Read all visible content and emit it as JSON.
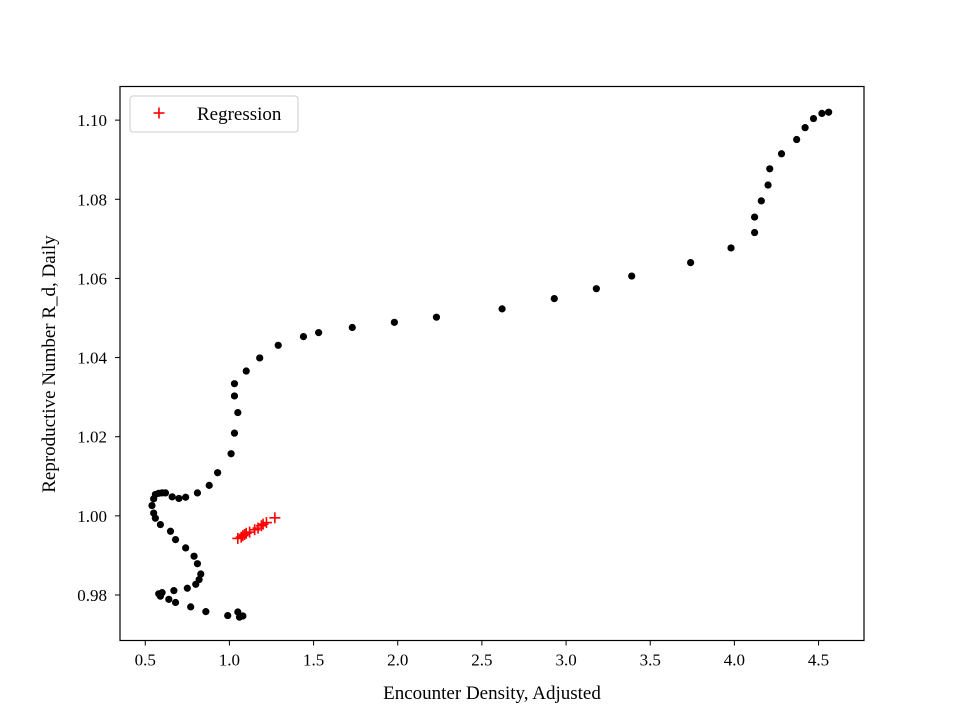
{
  "chart_data": {
    "type": "scatter",
    "title": "",
    "xlabel": "Encounter Density, Adjusted",
    "ylabel": "Reproductive Number R_d, Daily",
    "xlim": [
      0.35,
      4.77
    ],
    "ylim": [
      0.9685,
      1.1085
    ],
    "xticks": [
      0.5,
      1.0,
      1.5,
      2.0,
      2.5,
      3.0,
      3.5,
      4.0,
      4.5
    ],
    "xtick_labels": [
      "0.5",
      "1.0",
      "1.5",
      "2.0",
      "2.5",
      "3.0",
      "3.5",
      "4.0",
      "4.5"
    ],
    "yticks": [
      0.98,
      1.0,
      1.02,
      1.04,
      1.06,
      1.08,
      1.1
    ],
    "ytick_labels": [
      "0.98",
      "1.00",
      "1.02",
      "1.04",
      "1.06",
      "1.08",
      "1.10"
    ],
    "grid": false,
    "legend": {
      "placement": "upper-left",
      "entries": [
        "Regression"
      ]
    },
    "series": [
      {
        "marker": "dot",
        "color": "#000000",
        "points": [
          [
            1.06,
            0.9744
          ],
          [
            1.08,
            0.9747
          ],
          [
            1.05,
            0.9757
          ],
          [
            0.99,
            0.9748
          ],
          [
            0.86,
            0.9758
          ],
          [
            0.77,
            0.977
          ],
          [
            0.68,
            0.9781
          ],
          [
            0.64,
            0.9789
          ],
          [
            0.59,
            0.9797
          ],
          [
            0.58,
            0.9803
          ],
          [
            0.6,
            0.9806
          ],
          [
            0.67,
            0.9811
          ],
          [
            0.75,
            0.9817
          ],
          [
            0.8,
            0.9827
          ],
          [
            0.82,
            0.9839
          ],
          [
            0.83,
            0.9853
          ],
          [
            0.81,
            0.9879
          ],
          [
            0.79,
            0.9898
          ],
          [
            0.74,
            0.9919
          ],
          [
            0.68,
            0.994
          ],
          [
            0.65,
            0.9961
          ],
          [
            0.59,
            0.9978
          ],
          [
            0.56,
            0.9994
          ],
          [
            0.55,
            1.0007
          ],
          [
            0.54,
            1.0026
          ],
          [
            0.55,
            1.0043
          ],
          [
            0.56,
            1.0054
          ],
          [
            0.58,
            1.0057
          ],
          [
            0.6,
            1.0058
          ],
          [
            0.62,
            1.0058
          ],
          [
            0.66,
            1.0048
          ],
          [
            0.7,
            1.0044
          ],
          [
            0.74,
            1.0047
          ],
          [
            0.81,
            1.0058
          ],
          [
            0.88,
            1.0077
          ],
          [
            0.93,
            1.0109
          ],
          [
            1.01,
            1.0157
          ],
          [
            1.03,
            1.0209
          ],
          [
            1.05,
            1.0261
          ],
          [
            1.03,
            1.0303
          ],
          [
            1.03,
            1.0334
          ],
          [
            1.1,
            1.0366
          ],
          [
            1.18,
            1.0399
          ],
          [
            1.29,
            1.0431
          ],
          [
            1.44,
            1.0453
          ],
          [
            1.53,
            1.0463
          ],
          [
            1.73,
            1.0476
          ],
          [
            1.98,
            1.0489
          ],
          [
            2.23,
            1.0502
          ],
          [
            2.62,
            1.0523
          ],
          [
            2.93,
            1.0549
          ],
          [
            3.18,
            1.0574
          ],
          [
            3.39,
            1.0606
          ],
          [
            3.74,
            1.064
          ],
          [
            3.98,
            1.0677
          ],
          [
            4.12,
            1.0716
          ],
          [
            4.12,
            1.0755
          ],
          [
            4.16,
            1.0796
          ],
          [
            4.2,
            1.0836
          ],
          [
            4.21,
            1.0877
          ],
          [
            4.28,
            1.0915
          ],
          [
            4.37,
            1.0951
          ],
          [
            4.42,
            1.0981
          ],
          [
            4.47,
            1.1004
          ],
          [
            4.52,
            1.1017
          ],
          [
            4.56,
            1.102
          ]
        ]
      },
      {
        "name": "Regression",
        "marker": "plus",
        "color": "#ff0000",
        "points": [
          [
            1.05,
            0.9943
          ],
          [
            1.07,
            0.9946
          ],
          [
            1.08,
            0.995
          ],
          [
            1.09,
            0.9953
          ],
          [
            1.1,
            0.9956
          ],
          [
            1.12,
            0.9959
          ],
          [
            1.15,
            0.9965
          ],
          [
            1.17,
            0.9969
          ],
          [
            1.19,
            0.9975
          ],
          [
            1.2,
            0.9979
          ],
          [
            1.22,
            0.9983
          ],
          [
            1.27,
            0.9995
          ]
        ]
      }
    ]
  }
}
